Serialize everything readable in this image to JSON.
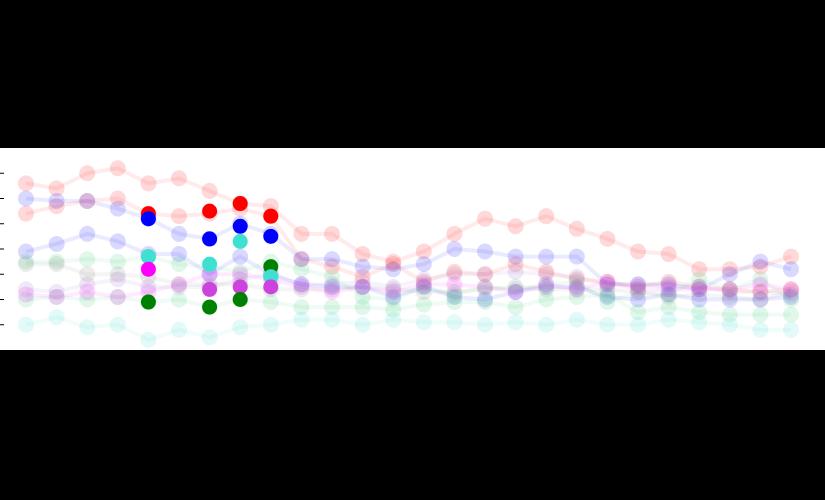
{
  "colors": {
    "background": "#000000",
    "plot_background": "#ffffff",
    "axis_ticks": "#000000"
  },
  "chart_data": {
    "type": "line",
    "title": "",
    "xlabel": "",
    "ylabel": "",
    "grid": false,
    "legend": "none",
    "x": [
      1,
      2,
      3,
      4,
      5,
      6,
      7,
      8,
      9,
      10,
      11,
      12,
      13,
      14,
      15,
      16,
      17,
      18,
      19,
      20,
      21,
      22,
      23,
      24,
      25,
      26
    ],
    "ylim": [
      0,
      8
    ],
    "highlight_x": [
      5,
      7,
      8,
      9
    ],
    "series": [
      {
        "color": "#ff0000",
        "values": [
          6.6,
          6.4,
          7.0,
          7.2,
          6.6,
          6.8,
          6.3,
          5.8,
          5.7,
          4.6,
          4.6,
          3.8,
          3.5,
          3.9,
          4.6,
          5.2,
          4.9,
          5.3,
          4.8,
          4.4,
          3.9,
          3.8,
          3.2,
          3.2,
          3.3,
          3.7
        ]
      },
      {
        "color": "#ff0000",
        "values": [
          5.4,
          5.7,
          5.9,
          6.0,
          5.4,
          5.3,
          5.4,
          5.6,
          5.3,
          3.6,
          3.3,
          2.9,
          3.4,
          2.7,
          3.1,
          3.0,
          3.4,
          3.1,
          2.8,
          2.7,
          2.5,
          2.7,
          2.5,
          2.4,
          2.3,
          2.4
        ]
      },
      {
        "color": "#0000ff",
        "values": [
          6.0,
          5.9,
          5.9,
          5.6,
          5.2,
          4.6,
          4.4,
          5.0,
          4.6,
          3.6,
          3.6,
          3.3,
          3.2,
          3.4,
          4.0,
          3.9,
          3.7,
          3.7,
          3.7,
          2.6,
          2.6,
          2.6,
          2.4,
          3.0,
          3.5,
          3.2
        ]
      },
      {
        "color": "#0000ff",
        "values": [
          3.9,
          4.2,
          4.6,
          4.3,
          3.8,
          3.8,
          3.0,
          3.7,
          3.0,
          2.6,
          2.5,
          2.5,
          2.1,
          2.5,
          2.1,
          2.0,
          2.3,
          2.5,
          2.5,
          2.1,
          2.0,
          2.2,
          2.0,
          2.0,
          2.0,
          2.1
        ]
      },
      {
        "color": "#2ecc71",
        "values": [
          3.5,
          3.5,
          3.6,
          3.5,
          3.7,
          3.4,
          3.3,
          3.1,
          3.5,
          3.2,
          2.9,
          2.1,
          2.0,
          2.5,
          2.2,
          2.5,
          2.4,
          2.6,
          2.7,
          1.9,
          2.3,
          2.2,
          2.8,
          2.4,
          2.8,
          2.0
        ]
      },
      {
        "color": "#2ecc71",
        "values": [
          2.0,
          2.1,
          2.0,
          2.1,
          1.9,
          2.0,
          1.7,
          2.0,
          1.9,
          1.7,
          1.7,
          1.7,
          1.6,
          1.8,
          1.9,
          1.9,
          1.7,
          2.0,
          2.1,
          2.2,
          1.5,
          1.7,
          1.5,
          1.4,
          1.4,
          1.4
        ]
      },
      {
        "color": "#40e0d0",
        "values": [
          1.0,
          1.3,
          0.9,
          1.0,
          0.4,
          0.8,
          0.5,
          0.9,
          1.0,
          1.2,
          1.2,
          1.0,
          1.2,
          1.1,
          1.1,
          1.0,
          1.1,
          1.0,
          1.2,
          1.0,
          1.0,
          1.2,
          1.1,
          1.0,
          0.8,
          0.8
        ]
      },
      {
        "color": "#ff00ff",
        "values": [
          2.2,
          2.1,
          2.3,
          2.1,
          2.3,
          2.6,
          3.0,
          3.0,
          2.8,
          2.5,
          2.3,
          2.5,
          2.3,
          2.6,
          2.6,
          2.5,
          2.3,
          2.6,
          2.4,
          2.7,
          2.4,
          2.4,
          2.4,
          2.4,
          2.6,
          2.4
        ]
      },
      {
        "color": "#808080",
        "values": [
          3.4,
          3.4,
          3.0,
          3.0,
          2.9,
          2.6,
          2.6,
          2.6,
          2.4,
          2.4,
          2.4,
          2.5,
          2.4,
          2.3,
          2.3,
          2.4,
          2.5,
          2.4,
          2.4,
          2.4,
          2.3,
          2.1,
          2.2,
          2.1,
          2.0,
          2.3
        ]
      },
      {
        "color": "#9966cc",
        "values": [
          2.4,
          2.3,
          2.6,
          2.8,
          2.5,
          2.5,
          2.5,
          2.8,
          3.0,
          2.6,
          2.6,
          2.7,
          2.5,
          2.8,
          3.0,
          3.0,
          3.1,
          3.0,
          2.9,
          2.6,
          2.6,
          2.5,
          2.5,
          2.3,
          2.3,
          2.2
        ]
      }
    ],
    "highlighted_points": [
      {
        "x": 5,
        "y": 5.4,
        "color": "#ff0000"
      },
      {
        "x": 5,
        "y": 5.2,
        "color": "#0000ff"
      },
      {
        "x": 5,
        "y": 3.7,
        "color": "#40e0d0"
      },
      {
        "x": 5,
        "y": 3.2,
        "color": "#ff00ff"
      },
      {
        "x": 5,
        "y": 1.9,
        "color": "#008000"
      },
      {
        "x": 7,
        "y": 5.5,
        "color": "#ff0000"
      },
      {
        "x": 7,
        "y": 4.4,
        "color": "#0000ff"
      },
      {
        "x": 7,
        "y": 3.4,
        "color": "#40e0d0"
      },
      {
        "x": 7,
        "y": 2.4,
        "color": "#cc44dd"
      },
      {
        "x": 7,
        "y": 1.7,
        "color": "#008000"
      },
      {
        "x": 8,
        "y": 5.8,
        "color": "#ff0000"
      },
      {
        "x": 8,
        "y": 4.9,
        "color": "#0000ff"
      },
      {
        "x": 8,
        "y": 4.3,
        "color": "#40e0d0"
      },
      {
        "x": 8,
        "y": 2.5,
        "color": "#cc44dd"
      },
      {
        "x": 8,
        "y": 2.0,
        "color": "#008000"
      },
      {
        "x": 9,
        "y": 5.3,
        "color": "#ff0000"
      },
      {
        "x": 9,
        "y": 4.5,
        "color": "#0000ff"
      },
      {
        "x": 9,
        "y": 3.3,
        "color": "#008000"
      },
      {
        "x": 9,
        "y": 2.9,
        "color": "#40e0d0"
      },
      {
        "x": 9,
        "y": 2.5,
        "color": "#cc44dd"
      }
    ]
  }
}
